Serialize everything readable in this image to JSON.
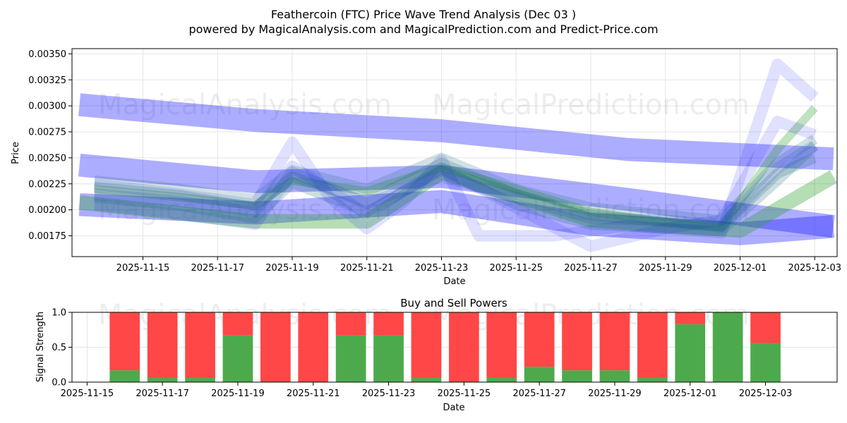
{
  "chart_data": [
    {
      "type": "line",
      "title": "Feathercoin (FTC) Price Wave Trend Analysis (Dec 03 )",
      "subtitle": "powered by MagicalAnalysis.com and MagicalPrediction.com and Predict-Price.com",
      "xlabel": "Date",
      "ylabel": "Price",
      "ylim": [
        0.00155,
        0.00355
      ],
      "xlim_days": [
        -0.9,
        19.6
      ],
      "x_start_date": "2025-11-14",
      "grid": true,
      "x_ticks": [
        {
          "day": 1,
          "label": "2025-11-15"
        },
        {
          "day": 3,
          "label": "2025-11-17"
        },
        {
          "day": 5,
          "label": "2025-11-19"
        },
        {
          "day": 7,
          "label": "2025-11-21"
        },
        {
          "day": 9,
          "label": "2025-11-23"
        },
        {
          "day": 11,
          "label": "2025-11-25"
        },
        {
          "day": 13,
          "label": "2025-11-27"
        },
        {
          "day": 15,
          "label": "2025-11-29"
        },
        {
          "day": 17,
          "label": "2025-12-01"
        },
        {
          "day": 19,
          "label": "2025-12-03"
        }
      ],
      "y_ticks": [
        {
          "value": 0.00175,
          "label": "0.00175"
        },
        {
          "value": 0.002,
          "label": "0.00200"
        },
        {
          "value": 0.00225,
          "label": "0.00225"
        },
        {
          "value": 0.0025,
          "label": "0.00250"
        },
        {
          "value": 0.00275,
          "label": "0.00275"
        },
        {
          "value": 0.003,
          "label": "0.00300"
        },
        {
          "value": 0.00325,
          "label": "0.00325"
        },
        {
          "value": 0.0035,
          "label": "0.00350"
        }
      ],
      "series": [
        {
          "name": "upper channel",
          "color": "#0000ff",
          "opacity": 0.32,
          "width_price": 0.00022,
          "points": [
            [
              -0.7,
              0.00301
            ],
            [
              4,
              0.00286
            ],
            [
              9,
              0.00276
            ],
            [
              14,
              0.00258
            ],
            [
              19.5,
              0.00249
            ]
          ]
        },
        {
          "name": "middle channel",
          "color": "#0000ff",
          "opacity": 0.32,
          "width_price": 0.00022,
          "points": [
            [
              -0.7,
              0.00243
            ],
            [
              4,
              0.00227
            ],
            [
              9,
              0.00232
            ],
            [
              14,
              0.0021
            ],
            [
              19.5,
              0.00184
            ]
          ]
        },
        {
          "name": "lower channel",
          "color": "#0000ff",
          "opacity": 0.32,
          "width_price": 0.00022,
          "points": [
            [
              -0.7,
              0.00205
            ],
            [
              4,
              0.00197
            ],
            [
              9,
              0.00208
            ],
            [
              13,
              0.00186
            ],
            [
              17,
              0.00177
            ],
            [
              19.5,
              0.00184
            ]
          ]
        },
        {
          "name": "green band",
          "color": "#2ca02c",
          "opacity": 0.35,
          "width_price": 0.00014,
          "points": [
            [
              -0.7,
              0.00207
            ],
            [
              4,
              0.00189
            ],
            [
              7,
              0.00189
            ],
            [
              9,
              0.00236
            ],
            [
              13,
              0.0019
            ],
            [
              17,
              0.0018
            ],
            [
              19.5,
              0.00232
            ]
          ]
        },
        {
          "name": "green wave",
          "color": "#2ca02c",
          "opacity": 0.3,
          "width_price": 8e-05,
          "points": [
            [
              -0.3,
              0.0022
            ],
            [
              2,
              0.00212
            ],
            [
              4,
              0.00204
            ],
            [
              5,
              0.00228
            ],
            [
              7,
              0.00218
            ],
            [
              9,
              0.00241
            ],
            [
              11,
              0.0022
            ],
            [
              13,
              0.00198
            ],
            [
              15,
              0.00188
            ],
            [
              16.5,
              0.00183
            ],
            [
              18,
              0.00258
            ],
            [
              19,
              0.00298
            ]
          ]
        },
        {
          "name": "blue wave 1",
          "color": "#0000ff",
          "opacity": 0.12,
          "width_price": 0.00011,
          "points": [
            [
              -0.3,
              0.00225
            ],
            [
              2,
              0.00215
            ],
            [
              4,
              0.00205
            ],
            [
              5,
              0.00265
            ],
            [
              6,
              0.00212
            ],
            [
              7,
              0.00182
            ],
            [
              8,
              0.00208
            ],
            [
              9,
              0.00248
            ],
            [
              10,
              0.00175
            ],
            [
              12,
              0.00175
            ],
            [
              14,
              0.00185
            ],
            [
              16.5,
              0.00178
            ],
            [
              18,
              0.0034
            ],
            [
              19,
              0.00308
            ]
          ]
        },
        {
          "name": "blue wave 2",
          "color": "#0000ff",
          "opacity": 0.12,
          "width_price": 0.00011,
          "points": [
            [
              -0.3,
              0.00215
            ],
            [
              2,
              0.00208
            ],
            [
              4,
              0.00198
            ],
            [
              5,
              0.00242
            ],
            [
              7,
              0.00196
            ],
            [
              9,
              0.0024
            ],
            [
              11,
              0.00202
            ],
            [
              13,
              0.00165
            ],
            [
              15,
              0.00182
            ],
            [
              16.5,
              0.0019
            ],
            [
              18,
              0.00285
            ],
            [
              19,
              0.00272
            ]
          ]
        },
        {
          "name": "blue wave 3",
          "color": "#0000ff",
          "opacity": 0.12,
          "width_price": 0.00011,
          "points": [
            [
              -0.3,
              0.00205
            ],
            [
              2,
              0.00196
            ],
            [
              4,
              0.00186
            ],
            [
              5,
              0.00236
            ],
            [
              7,
              0.00206
            ],
            [
              9,
              0.00232
            ],
            [
              11,
              0.00212
            ],
            [
              13,
              0.00192
            ],
            [
              15,
              0.0019
            ],
            [
              16.5,
              0.00185
            ],
            [
              18,
              0.0024
            ],
            [
              19,
              0.00262
            ]
          ]
        },
        {
          "name": "teal wave 1",
          "color": "#1a6a7a",
          "opacity": 0.22,
          "width_price": 0.0001,
          "points": [
            [
              -0.3,
              0.00222
            ],
            [
              2,
              0.00214
            ],
            [
              4,
              0.00202
            ],
            [
              5,
              0.00232
            ],
            [
              7,
              0.00208
            ],
            [
              9,
              0.00245
            ],
            [
              11,
              0.00215
            ],
            [
              13,
              0.00195
            ],
            [
              15,
              0.00188
            ],
            [
              16.5,
              0.00183
            ],
            [
              18,
              0.00235
            ],
            [
              19,
              0.0025
            ]
          ]
        },
        {
          "name": "teal wave 2",
          "color": "#1a6a7a",
          "opacity": 0.22,
          "width_price": 0.0001,
          "points": [
            [
              -0.3,
              0.00212
            ],
            [
              2,
              0.00204
            ],
            [
              4,
              0.00192
            ],
            [
              5,
              0.00226
            ],
            [
              7,
              0.00198
            ],
            [
              9,
              0.00238
            ],
            [
              11,
              0.00205
            ],
            [
              13,
              0.00186
            ],
            [
              15,
              0.00182
            ],
            [
              16.5,
              0.0018
            ],
            [
              18,
              0.00228
            ],
            [
              19,
              0.00262
            ]
          ]
        },
        {
          "name": "teal wave 3",
          "color": "#1a6a7a",
          "opacity": 0.2,
          "width_price": 0.0001,
          "points": [
            [
              -0.3,
              0.00228
            ],
            [
              2,
              0.0022
            ],
            [
              4,
              0.0021
            ],
            [
              5,
              0.00238
            ],
            [
              7,
              0.0022
            ],
            [
              9,
              0.0025
            ],
            [
              11,
              0.0022
            ],
            [
              13,
              0.00202
            ],
            [
              15,
              0.00195
            ],
            [
              16.5,
              0.0019
            ],
            [
              18,
              0.00245
            ],
            [
              19,
              0.00268
            ]
          ]
        }
      ]
    },
    {
      "type": "bar",
      "title": "Buy and Sell Powers",
      "xlabel": "Date",
      "ylabel": "Signal Strength",
      "ylim": [
        0,
        1
      ],
      "xlim_days": [
        -0.4,
        19.9
      ],
      "x_start_date": "2025-11-15",
      "y_ticks": [
        {
          "value": 0,
          "label": "0.0"
        },
        {
          "value": 0.5,
          "label": "0.5"
        },
        {
          "value": 1,
          "label": "1.0"
        }
      ],
      "x_ticks": [
        {
          "day": 0,
          "label": "2025-11-15"
        },
        {
          "day": 2,
          "label": "2025-11-17"
        },
        {
          "day": 4,
          "label": "2025-11-19"
        },
        {
          "day": 6,
          "label": "2025-11-21"
        },
        {
          "day": 8,
          "label": "2025-11-23"
        },
        {
          "day": 10,
          "label": "2025-11-25"
        },
        {
          "day": 12,
          "label": "2025-11-27"
        },
        {
          "day": 14,
          "label": "2025-11-29"
        },
        {
          "day": 16,
          "label": "2025-12-01"
        },
        {
          "day": 18,
          "label": "2025-12-03"
        }
      ],
      "categories": [
        "2025-11-16",
        "2025-11-17",
        "2025-11-18",
        "2025-11-19",
        "2025-11-20",
        "2025-11-21",
        "2025-11-22",
        "2025-11-23",
        "2025-11-24",
        "2025-11-25",
        "2025-11-26",
        "2025-11-27",
        "2025-11-28",
        "2025-11-29",
        "2025-11-30",
        "2025-12-01",
        "2025-12-02",
        "2025-12-03"
      ],
      "category_days": [
        1,
        2,
        3,
        4,
        5,
        6,
        7,
        8,
        9,
        10,
        11,
        12,
        13,
        14,
        15,
        16,
        17,
        18
      ],
      "bar_width_days": 0.8,
      "series": [
        {
          "name": "Buy",
          "color": "#4caa4c",
          "values": [
            0.17,
            0.06,
            0.06,
            0.67,
            0.0,
            0.0,
            0.67,
            0.67,
            0.06,
            0.0,
            0.06,
            0.22,
            0.17,
            0.17,
            0.06,
            0.83,
            1.0,
            0.56
          ]
        },
        {
          "name": "Sell",
          "color": "#ff4747",
          "values": [
            0.83,
            0.94,
            0.94,
            0.33,
            1.0,
            1.0,
            0.33,
            0.33,
            0.94,
            1.0,
            0.94,
            0.78,
            0.83,
            0.83,
            0.94,
            0.17,
            0.0,
            0.44
          ]
        }
      ]
    }
  ],
  "watermark": {
    "left": "MagicalAnalysis.com",
    "right": "MagicalPrediction.com"
  }
}
